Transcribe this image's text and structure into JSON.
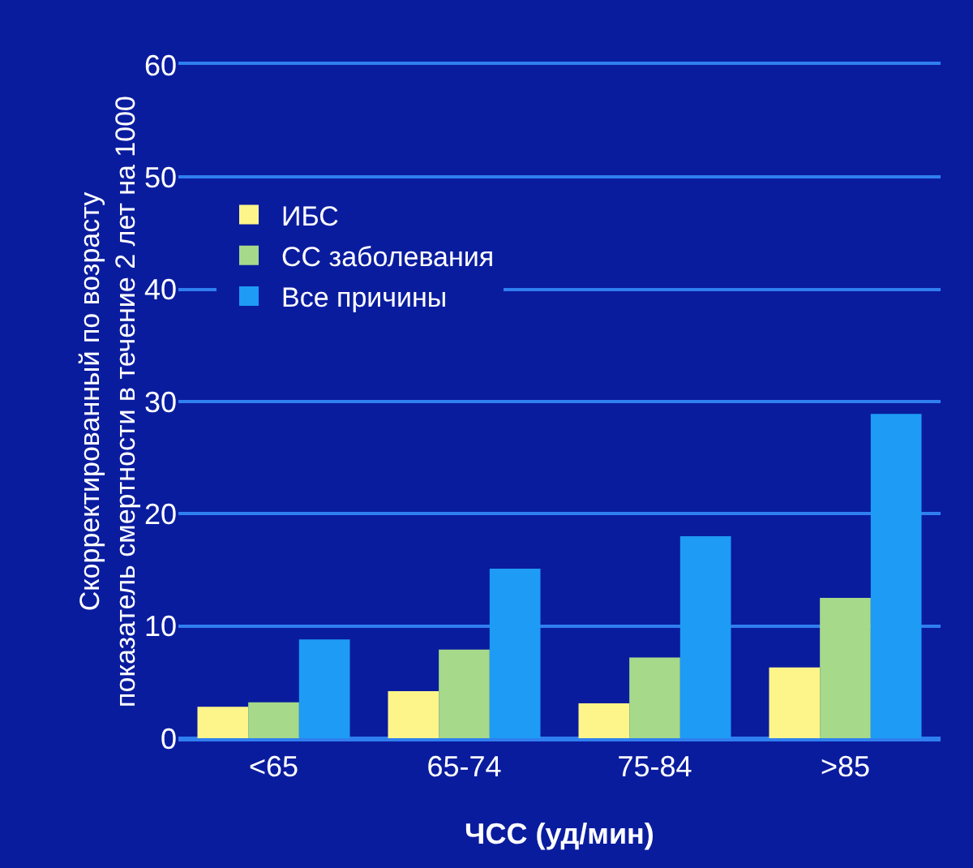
{
  "chart_data": {
    "type": "bar",
    "xlabel": "ЧСС (уд/мин)",
    "ylabel": "Скорректированный по возрасту\nпоказатель смертности в течение 2 лет на 1000",
    "categories": [
      "<65",
      "65-74",
      "75-84",
      ">85"
    ],
    "series": [
      {
        "name": "ИБС",
        "color": "#fdf58a",
        "values": [
          2.8,
          4.2,
          3.1,
          6.3
        ]
      },
      {
        "name": "СС заболевания",
        "color": "#a6d98a",
        "values": [
          3.2,
          7.9,
          7.2,
          12.5
        ]
      },
      {
        "name": "Все причины",
        "color": "#1e9bf5",
        "values": [
          8.8,
          15.1,
          18.0,
          28.9
        ]
      }
    ],
    "ylim": [
      0,
      60
    ],
    "yticks": [
      0,
      10,
      20,
      30,
      40,
      50,
      60
    ],
    "grid": "y",
    "legend": "top left"
  }
}
